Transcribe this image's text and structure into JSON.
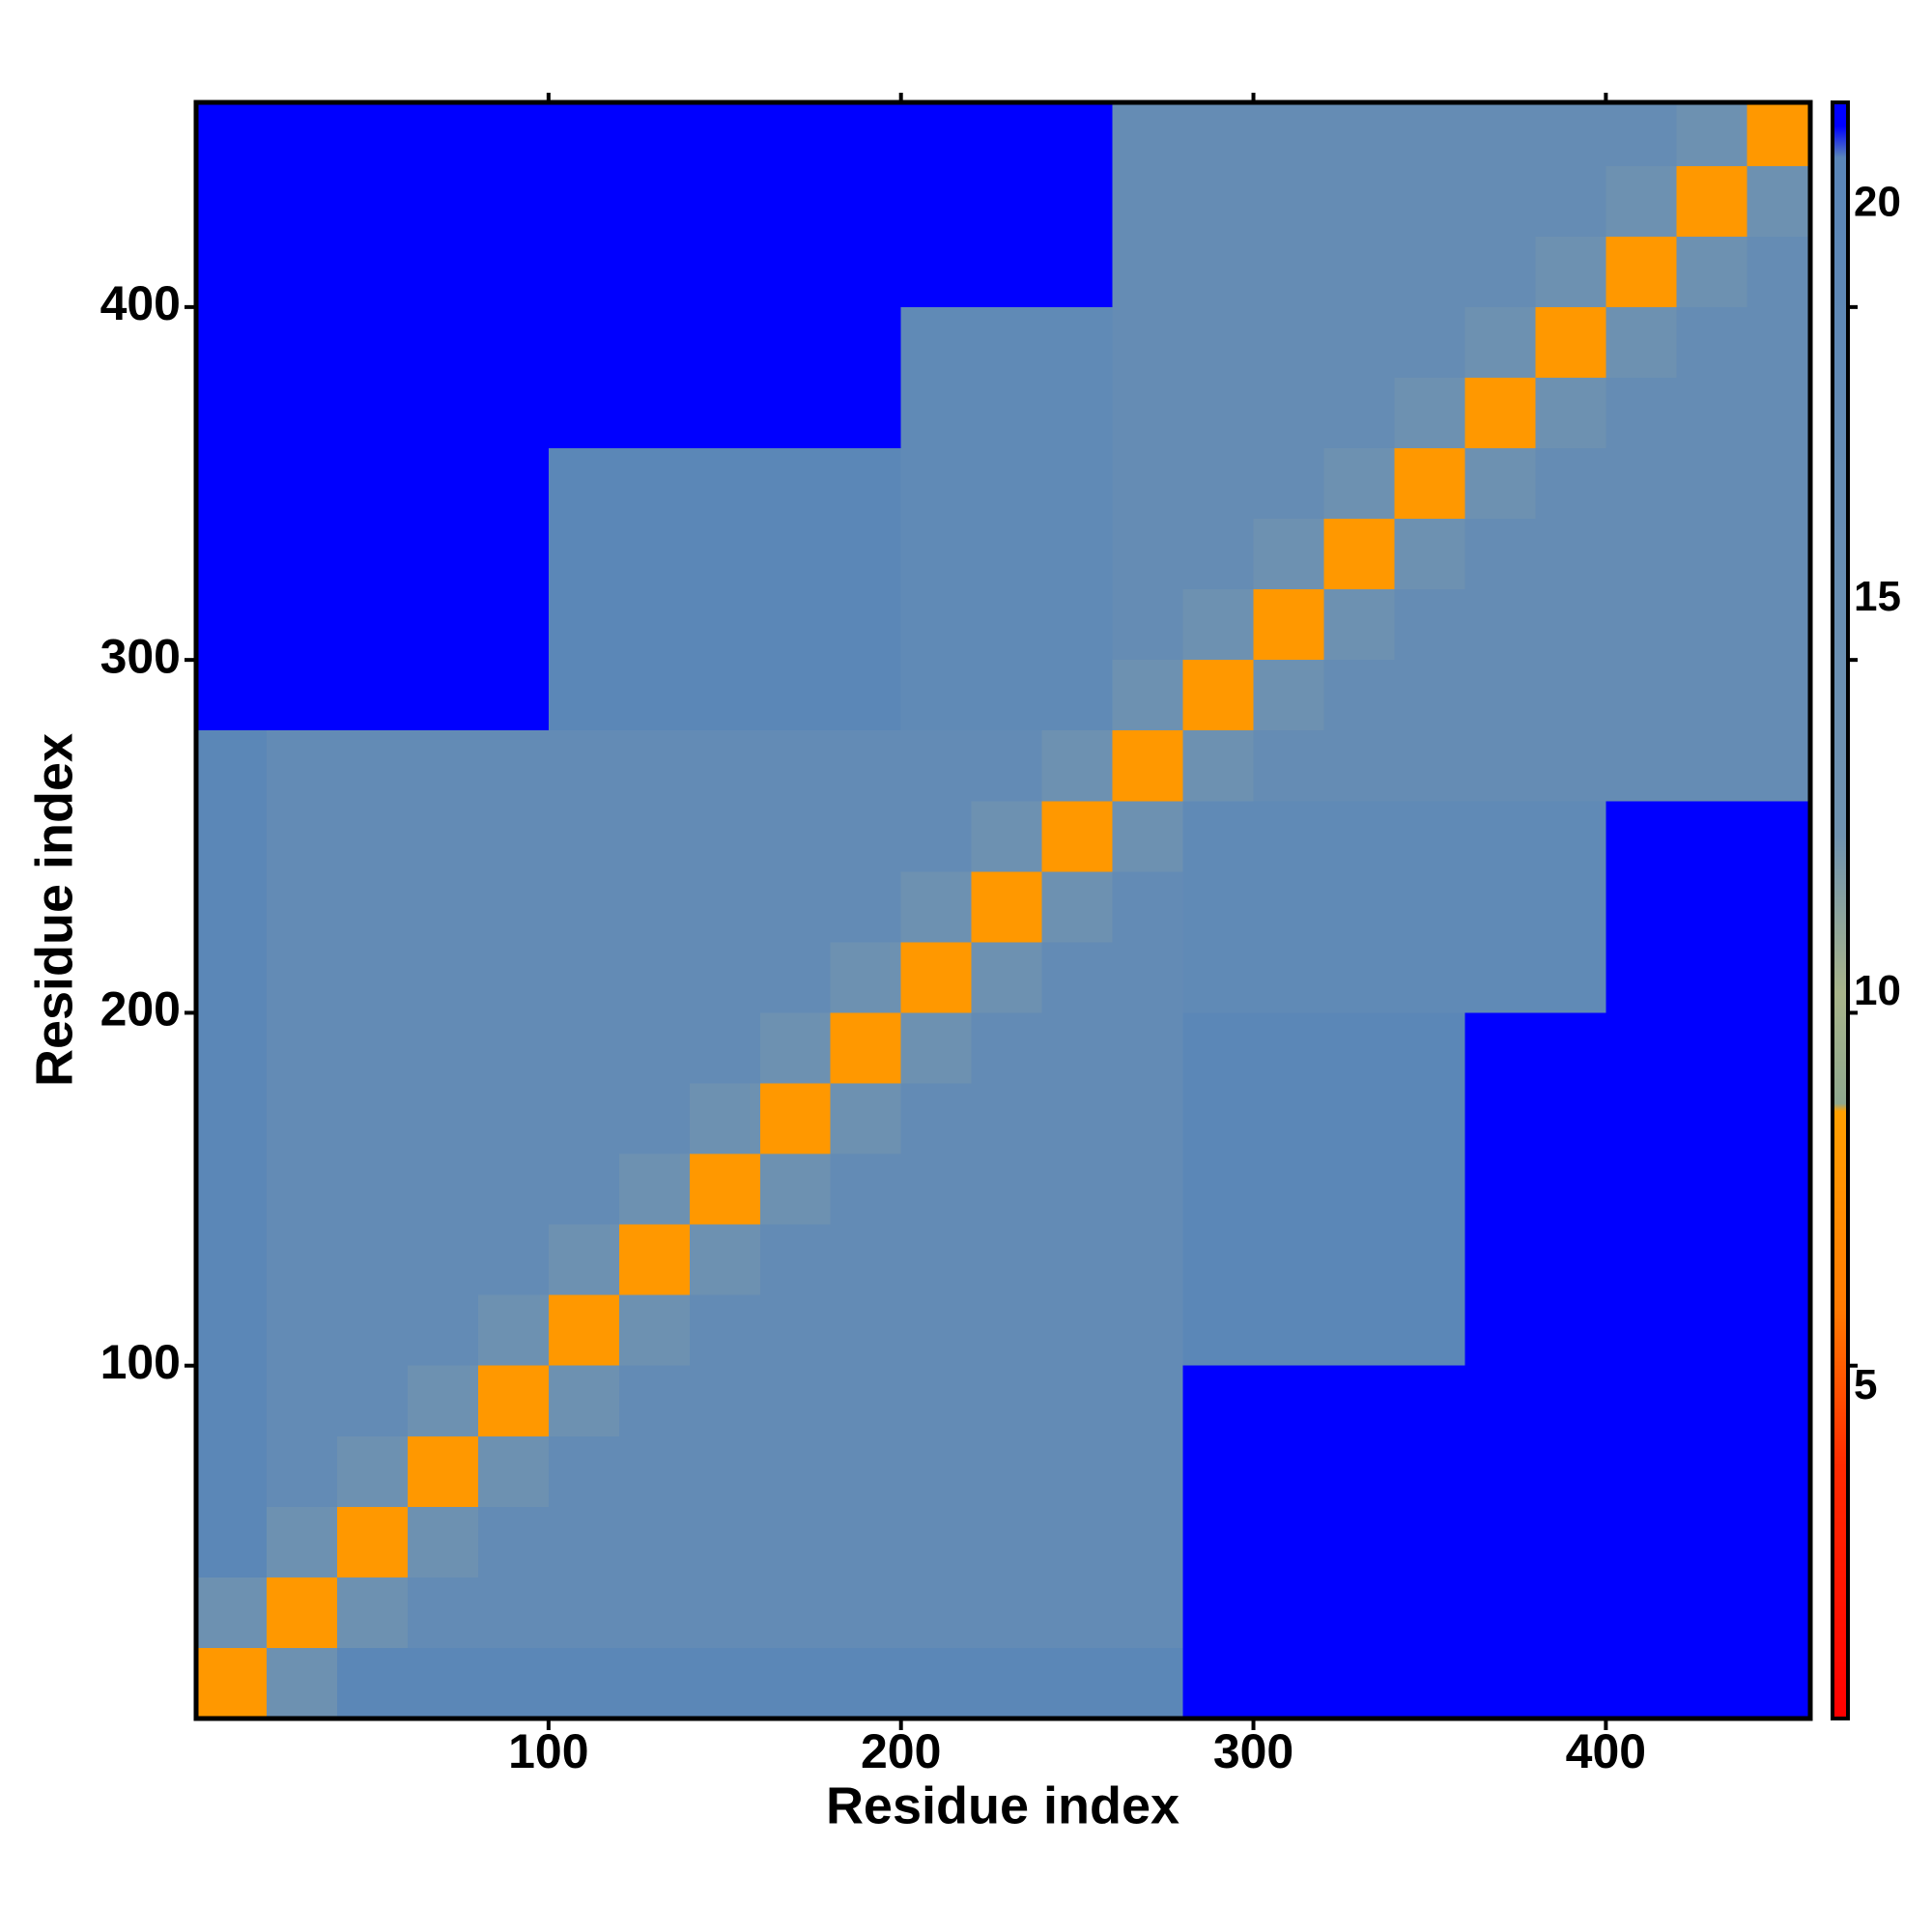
{
  "chart_data": {
    "type": "heatmap",
    "xlabel": "Residue index",
    "ylabel": "Residue index",
    "xbins": [
      0,
      20,
      40,
      60,
      80,
      100,
      120,
      140,
      160,
      180,
      200,
      220,
      240,
      260,
      280,
      300,
      320,
      340,
      360,
      380,
      400,
      420,
      440,
      458
    ],
    "ybins": [
      0,
      20,
      40,
      60,
      80,
      100,
      120,
      140,
      160,
      180,
      200,
      220,
      240,
      260,
      280,
      300,
      320,
      340,
      360,
      380,
      400,
      420,
      440,
      458
    ],
    "values": [
      [
        8,
        13,
        20,
        20,
        20,
        20,
        20,
        20,
        20,
        20,
        20,
        20,
        20,
        20,
        21,
        21,
        21,
        21,
        21,
        21,
        21,
        21,
        21
      ],
      [
        13,
        8,
        13,
        17,
        17,
        17,
        17,
        17,
        17,
        17,
        17,
        17,
        17,
        17,
        21,
        21,
        21,
        21,
        21,
        21,
        21,
        21,
        21
      ],
      [
        20,
        13,
        8,
        13,
        17,
        17,
        17,
        17,
        17,
        17,
        17,
        17,
        17,
        17,
        21,
        21,
        21,
        21,
        21,
        21,
        21,
        21,
        21
      ],
      [
        20,
        17,
        13,
        8,
        13,
        17,
        17,
        17,
        17,
        17,
        17,
        17,
        17,
        17,
        21,
        21,
        21,
        21,
        21,
        21,
        21,
        21,
        21
      ],
      [
        20,
        17,
        17,
        13,
        8,
        13,
        17,
        17,
        17,
        17,
        17,
        17,
        17,
        17,
        21,
        21,
        21,
        21,
        21,
        21,
        21,
        21,
        21
      ],
      [
        20,
        17,
        17,
        17,
        13,
        8,
        13,
        17,
        17,
        17,
        17,
        17,
        17,
        17,
        20,
        20,
        20,
        20,
        21,
        21,
        21,
        21,
        21
      ],
      [
        20,
        17,
        17,
        17,
        17,
        13,
        8,
        13,
        17,
        17,
        17,
        17,
        17,
        17,
        20,
        20,
        20,
        20,
        21,
        21,
        21,
        21,
        21
      ],
      [
        20,
        17,
        17,
        17,
        17,
        17,
        13,
        8,
        13,
        17,
        17,
        17,
        17,
        17,
        20,
        20,
        20,
        20,
        21,
        21,
        21,
        21,
        21
      ],
      [
        20,
        17,
        17,
        17,
        17,
        17,
        17,
        13,
        8,
        13,
        17,
        17,
        17,
        17,
        20,
        20,
        20,
        20,
        21,
        21,
        21,
        21,
        21
      ],
      [
        20,
        17,
        17,
        17,
        17,
        17,
        17,
        17,
        13,
        8,
        13,
        17,
        17,
        17,
        20,
        20,
        20,
        20,
        21,
        21,
        21,
        21,
        21
      ],
      [
        20,
        17,
        17,
        17,
        17,
        17,
        17,
        17,
        17,
        13,
        8,
        13,
        17,
        17,
        18,
        18,
        18,
        18,
        18,
        18,
        21,
        21,
        21
      ],
      [
        20,
        17,
        17,
        17,
        17,
        17,
        17,
        17,
        17,
        17,
        13,
        8,
        13,
        17,
        18,
        18,
        18,
        18,
        18,
        18,
        21,
        21,
        21
      ],
      [
        20,
        17,
        17,
        17,
        17,
        17,
        17,
        17,
        17,
        17,
        17,
        13,
        8,
        13,
        18,
        18,
        18,
        18,
        18,
        18,
        21,
        21,
        21
      ],
      [
        20,
        17,
        17,
        17,
        17,
        17,
        17,
        17,
        17,
        17,
        17,
        17,
        13,
        8,
        13,
        16,
        16,
        16,
        16,
        16,
        16,
        16,
        16
      ],
      [
        21,
        21,
        21,
        21,
        21,
        20,
        20,
        20,
        20,
        20,
        18,
        18,
        18,
        13,
        8,
        13,
        16,
        16,
        16,
        16,
        16,
        16,
        16
      ],
      [
        21,
        21,
        21,
        21,
        21,
        20,
        20,
        20,
        20,
        20,
        18,
        18,
        18,
        16,
        13,
        8,
        13,
        16,
        16,
        16,
        16,
        16,
        16
      ],
      [
        21,
        21,
        21,
        21,
        21,
        20,
        20,
        20,
        20,
        20,
        18,
        18,
        18,
        16,
        16,
        13,
        8,
        13,
        16,
        16,
        16,
        16,
        16
      ],
      [
        21,
        21,
        21,
        21,
        21,
        20,
        20,
        20,
        20,
        20,
        18,
        18,
        18,
        16,
        16,
        16,
        13,
        8,
        13,
        16,
        16,
        16,
        16
      ],
      [
        21,
        21,
        21,
        21,
        21,
        21,
        21,
        21,
        21,
        21,
        18,
        18,
        18,
        16,
        16,
        16,
        16,
        13,
        8,
        13,
        16,
        16,
        16
      ],
      [
        21,
        21,
        21,
        21,
        21,
        21,
        21,
        21,
        21,
        21,
        18,
        18,
        18,
        16,
        16,
        16,
        16,
        16,
        13,
        8,
        13,
        16,
        16
      ],
      [
        21,
        21,
        21,
        21,
        21,
        21,
        21,
        21,
        21,
        21,
        21,
        21,
        21,
        16,
        16,
        16,
        16,
        16,
        16,
        13,
        8,
        13,
        16
      ],
      [
        21,
        21,
        21,
        21,
        21,
        21,
        21,
        21,
        21,
        21,
        21,
        21,
        21,
        16,
        16,
        16,
        16,
        16,
        16,
        16,
        13,
        8,
        13
      ],
      [
        21,
        21,
        21,
        21,
        21,
        21,
        21,
        21,
        21,
        21,
        21,
        21,
        21,
        16,
        16,
        16,
        16,
        16,
        16,
        16,
        16,
        13,
        8
      ]
    ],
    "xlim": [
      0,
      458
    ],
    "ylim": [
      0,
      458
    ],
    "xticks": [
      100,
      200,
      300,
      400
    ],
    "yticks": [
      100,
      200,
      300,
      400
    ],
    "colorscale": [
      [
        0.8,
        "#ff0000"
      ],
      [
        4,
        "#ff2a00"
      ],
      [
        6,
        "#ff7a00"
      ],
      [
        8.5,
        "#ffa000"
      ],
      [
        8.6,
        "#8fa88e"
      ],
      [
        10,
        "#a8b48a"
      ],
      [
        12,
        "#6f92b0"
      ],
      [
        20.6,
        "#5a86b8"
      ],
      [
        21,
        "#0000ff"
      ],
      [
        21.3,
        "#0000ff"
      ]
    ],
    "zlim": [
      0.8,
      21.3
    ],
    "zticks": [
      5,
      10,
      15,
      20
    ]
  }
}
